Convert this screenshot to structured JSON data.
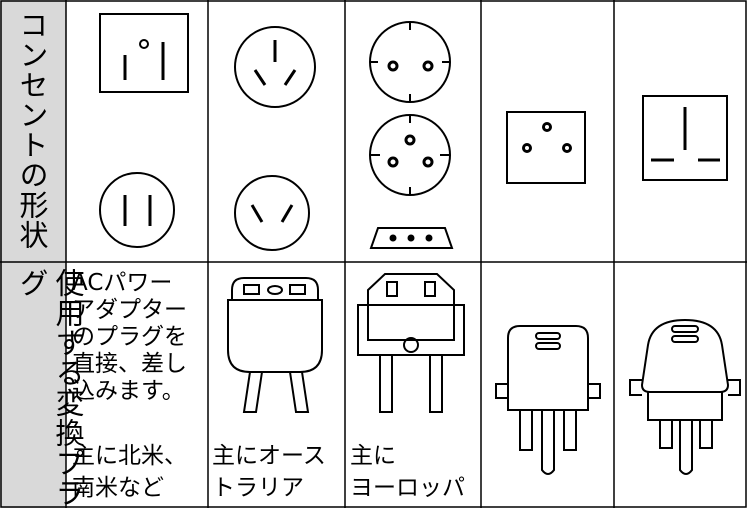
{
  "row_headers": [
    "コンセントの形状",
    "使用する変換プラグ"
  ],
  "plug_cells": [
    {
      "description": [
        "ACパワー",
        "アダプター",
        "のプラグを",
        "直接、差し",
        "込みます。"
      ],
      "region": [
        "主に北米、",
        "南米など"
      ]
    },
    {
      "region": [
        "主にオース",
        "トラリア"
      ]
    },
    {
      "region": [
        "主に",
        "ヨーロッパ"
      ]
    }
  ]
}
